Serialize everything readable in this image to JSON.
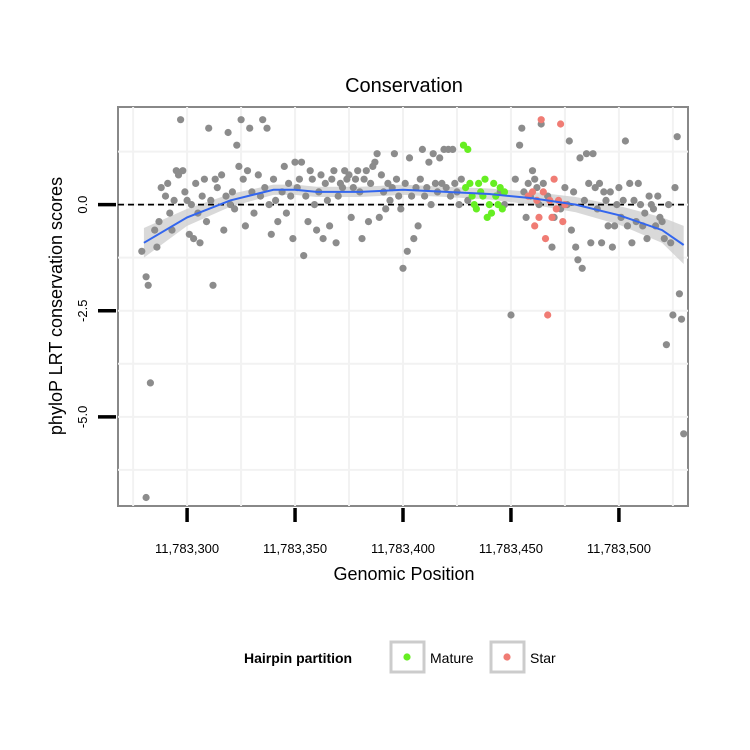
{
  "chart_data": {
    "type": "scatter",
    "title": "Conservation",
    "xlabel": "Genomic Position",
    "ylabel": "phyloP LRT conservation scores",
    "xlim": [
      11783268,
      11783532
    ],
    "ylim": [
      -7.1,
      2.3
    ],
    "x_ticks": [
      {
        "value": 11783300,
        "label": "11,783,300"
      },
      {
        "value": 11783350,
        "label": "11,783,350"
      },
      {
        "value": 11783400,
        "label": "11,783,400"
      },
      {
        "value": 11783450,
        "label": "11,783,450"
      },
      {
        "value": 11783500,
        "label": "11,783,500"
      }
    ],
    "y_ticks": [
      {
        "value": 0.0,
        "label": "0.0"
      },
      {
        "value": -2.5,
        "label": "-2.5"
      },
      {
        "value": -5.0,
        "label": "-5.0"
      }
    ],
    "grid": true,
    "reference_line": {
      "y": 0,
      "style": "dashed"
    },
    "colors": {
      "other": "#8c8c8c",
      "Mature": "#66ee22",
      "Star": "#f07c74",
      "smooth": "#3366ee",
      "ribbon": "#cccccc"
    },
    "legend": {
      "title": "Hairpin partition",
      "position": "bottom",
      "entries": [
        {
          "name": "Mature",
          "color": "#66ee22"
        },
        {
          "name": "Star",
          "color": "#f07c74"
        }
      ]
    },
    "series": [
      {
        "group": "other",
        "points": [
          [
            11783279,
            -1.1
          ],
          [
            11783281,
            -1.7
          ],
          [
            11783282,
            -1.9
          ],
          [
            11783283,
            -4.2
          ],
          [
            11783285,
            -0.6
          ],
          [
            11783286,
            -1.0
          ],
          [
            11783287,
            -0.4
          ],
          [
            11783288,
            0.4
          ],
          [
            11783290,
            0.2
          ],
          [
            11783291,
            0.5
          ],
          [
            11783292,
            -0.2
          ],
          [
            11783293,
            -0.6
          ],
          [
            11783294,
            0.1
          ],
          [
            11783295,
            0.8
          ],
          [
            11783296,
            0.7
          ],
          [
            11783297,
            2.0
          ],
          [
            11783298,
            0.8
          ],
          [
            11783299,
            0.3
          ],
          [
            11783300,
            0.1
          ],
          [
            11783301,
            -0.7
          ],
          [
            11783302,
            0.0
          ],
          [
            11783303,
            -0.8
          ],
          [
            11783304,
            0.5
          ],
          [
            11783305,
            -0.2
          ],
          [
            11783306,
            -0.9
          ],
          [
            11783307,
            0.2
          ],
          [
            11783308,
            0.6
          ],
          [
            11783309,
            -0.4
          ],
          [
            11783310,
            1.8
          ],
          [
            11783311,
            0.1
          ],
          [
            11783312,
            -1.9
          ],
          [
            11783313,
            0.6
          ],
          [
            11783314,
            0.4
          ],
          [
            11783316,
            0.7
          ],
          [
            11783317,
            -0.6
          ],
          [
            11783318,
            0.2
          ],
          [
            11783319,
            1.7
          ],
          [
            11783320,
            0.0
          ],
          [
            11783321,
            0.3
          ],
          [
            11783322,
            -0.1
          ],
          [
            11783323,
            1.4
          ],
          [
            11783324,
            0.9
          ],
          [
            11783325,
            2.0
          ],
          [
            11783326,
            0.6
          ],
          [
            11783327,
            -0.5
          ],
          [
            11783328,
            0.8
          ],
          [
            11783329,
            1.8
          ],
          [
            11783330,
            0.3
          ],
          [
            11783331,
            -0.2
          ],
          [
            11783333,
            0.7
          ],
          [
            11783334,
            0.2
          ],
          [
            11783335,
            2.0
          ],
          [
            11783336,
            0.4
          ],
          [
            11783337,
            1.8
          ],
          [
            11783338,
            0.0
          ],
          [
            11783339,
            -0.7
          ],
          [
            11783340,
            0.6
          ],
          [
            11783341,
            0.1
          ],
          [
            11783342,
            -0.4
          ],
          [
            11783344,
            0.3
          ],
          [
            11783345,
            0.9
          ],
          [
            11783346,
            -0.2
          ],
          [
            11783347,
            0.5
          ],
          [
            11783348,
            0.2
          ],
          [
            11783349,
            -0.8
          ],
          [
            11783350,
            1.0
          ],
          [
            11783351,
            0.4
          ],
          [
            11783352,
            0.6
          ],
          [
            11783353,
            1.0
          ],
          [
            11783354,
            -1.2
          ],
          [
            11783355,
            0.2
          ],
          [
            11783356,
            -0.4
          ],
          [
            11783357,
            0.8
          ],
          [
            11783358,
            0.6
          ],
          [
            11783359,
            0.0
          ],
          [
            11783360,
            -0.6
          ],
          [
            11783361,
            0.3
          ],
          [
            11783362,
            0.7
          ],
          [
            11783363,
            -0.8
          ],
          [
            11783364,
            0.5
          ],
          [
            11783365,
            0.1
          ],
          [
            11783366,
            -0.5
          ],
          [
            11783367,
            0.6
          ],
          [
            11783368,
            0.8
          ],
          [
            11783369,
            -0.9
          ],
          [
            11783370,
            0.2
          ],
          [
            11783371,
            0.5
          ],
          [
            11783372,
            0.4
          ],
          [
            11783373,
            0.8
          ],
          [
            11783374,
            0.6
          ],
          [
            11783375,
            0.7
          ],
          [
            11783376,
            -0.3
          ],
          [
            11783377,
            0.4
          ],
          [
            11783378,
            0.6
          ],
          [
            11783379,
            0.8
          ],
          [
            11783380,
            0.3
          ],
          [
            11783381,
            -0.8
          ],
          [
            11783382,
            0.6
          ],
          [
            11783383,
            0.8
          ],
          [
            11783384,
            -0.4
          ],
          [
            11783385,
            0.5
          ],
          [
            11783386,
            0.9
          ],
          [
            11783387,
            1.0
          ],
          [
            11783388,
            1.2
          ],
          [
            11783389,
            -0.3
          ],
          [
            11783390,
            0.7
          ],
          [
            11783391,
            0.3
          ],
          [
            11783392,
            -0.1
          ],
          [
            11783393,
            0.5
          ],
          [
            11783394,
            0.1
          ],
          [
            11783395,
            0.4
          ],
          [
            11783396,
            1.2
          ],
          [
            11783397,
            0.6
          ],
          [
            11783398,
            0.2
          ],
          [
            11783399,
            -0.1
          ],
          [
            11783400,
            -1.5
          ],
          [
            11783401,
            0.5
          ],
          [
            11783402,
            -1.1
          ],
          [
            11783403,
            1.1
          ],
          [
            11783404,
            0.2
          ],
          [
            11783405,
            -0.8
          ],
          [
            11783406,
            0.4
          ],
          [
            11783407,
            -0.5
          ],
          [
            11783408,
            0.6
          ],
          [
            11783409,
            1.3
          ],
          [
            11783410,
            0.2
          ],
          [
            11783411,
            0.4
          ],
          [
            11783412,
            1.0
          ],
          [
            11783413,
            0.0
          ],
          [
            11783414,
            1.2
          ],
          [
            11783415,
            0.5
          ],
          [
            11783416,
            0.3
          ],
          [
            11783417,
            1.1
          ],
          [
            11783418,
            0.5
          ],
          [
            11783419,
            1.3
          ],
          [
            11783420,
            0.4
          ],
          [
            11783421,
            1.3
          ],
          [
            11783422,
            0.2
          ],
          [
            11783423,
            1.3
          ],
          [
            11783424,
            0.5
          ],
          [
            11783425,
            0.3
          ],
          [
            11783426,
            0.0
          ],
          [
            11783427,
            0.6
          ],
          [
            11783430,
            0.1
          ],
          [
            11783445,
            0.3
          ],
          [
            11783447,
            0.0
          ],
          [
            11783450,
            -2.6
          ],
          [
            11783452,
            0.6
          ],
          [
            11783454,
            1.4
          ],
          [
            11783455,
            1.8
          ],
          [
            11783456,
            0.3
          ],
          [
            11783457,
            -0.3
          ],
          [
            11783458,
            0.5
          ],
          [
            11783459,
            0.2
          ],
          [
            11783460,
            0.8
          ],
          [
            11783461,
            0.6
          ],
          [
            11783462,
            0.4
          ],
          [
            11783463,
            0.0
          ],
          [
            11783464,
            1.9
          ],
          [
            11783465,
            0.5
          ],
          [
            11783467,
            0.2
          ],
          [
            11783469,
            -1.0
          ],
          [
            11783470,
            -0.3
          ],
          [
            11783473,
            -0.1
          ],
          [
            11783475,
            0.4
          ],
          [
            11783476,
            0.0
          ],
          [
            11783477,
            1.5
          ],
          [
            11783478,
            -0.6
          ],
          [
            11783479,
            0.3
          ],
          [
            11783480,
            -1.0
          ],
          [
            11783481,
            -1.3
          ],
          [
            11783482,
            1.1
          ],
          [
            11783483,
            -1.5
          ],
          [
            11783484,
            0.1
          ],
          [
            11783485,
            1.2
          ],
          [
            11783486,
            0.5
          ],
          [
            11783487,
            -0.9
          ],
          [
            11783488,
            1.2
          ],
          [
            11783489,
            0.4
          ],
          [
            11783490,
            -0.1
          ],
          [
            11783491,
            0.5
          ],
          [
            11783492,
            -0.9
          ],
          [
            11783493,
            0.3
          ],
          [
            11783494,
            0.1
          ],
          [
            11783495,
            -0.5
          ],
          [
            11783496,
            0.3
          ],
          [
            11783497,
            -1.0
          ],
          [
            11783498,
            -0.5
          ],
          [
            11783499,
            0.0
          ],
          [
            11783500,
            0.4
          ],
          [
            11783501,
            -0.3
          ],
          [
            11783502,
            0.1
          ],
          [
            11783503,
            1.5
          ],
          [
            11783504,
            -0.5
          ],
          [
            11783505,
            0.5
          ],
          [
            11783506,
            -0.9
          ],
          [
            11783507,
            0.1
          ],
          [
            11783508,
            -0.4
          ],
          [
            11783509,
            0.5
          ],
          [
            11783510,
            0.0
          ],
          [
            11783511,
            -0.5
          ],
          [
            11783512,
            -0.2
          ],
          [
            11783513,
            -0.8
          ],
          [
            11783514,
            0.2
          ],
          [
            11783515,
            0.0
          ],
          [
            11783516,
            -0.1
          ],
          [
            11783517,
            -0.5
          ],
          [
            11783518,
            0.2
          ],
          [
            11783519,
            -0.3
          ],
          [
            11783520,
            -0.4
          ],
          [
            11783521,
            -0.8
          ],
          [
            11783522,
            -3.3
          ],
          [
            11783523,
            0.0
          ],
          [
            11783524,
            -0.9
          ],
          [
            11783525,
            -2.6
          ],
          [
            11783526,
            0.4
          ],
          [
            11783527,
            1.6
          ],
          [
            11783528,
            -2.1
          ],
          [
            11783529,
            -2.7
          ],
          [
            11783530,
            -5.4
          ],
          [
            11783281,
            -6.9
          ]
        ]
      },
      {
        "group": "Mature",
        "points": [
          [
            11783428,
            1.4
          ],
          [
            11783429,
            0.4
          ],
          [
            11783430,
            1.3
          ],
          [
            11783431,
            0.5
          ],
          [
            11783432,
            0.2
          ],
          [
            11783433,
            0.0
          ],
          [
            11783434,
            -0.1
          ],
          [
            11783435,
            0.5
          ],
          [
            11783436,
            0.3
          ],
          [
            11783437,
            0.2
          ],
          [
            11783438,
            0.6
          ],
          [
            11783439,
            -0.3
          ],
          [
            11783440,
            0.0
          ],
          [
            11783441,
            -0.2
          ],
          [
            11783442,
            0.5
          ],
          [
            11783443,
            0.2
          ],
          [
            11783444,
            0.0
          ],
          [
            11783445,
            0.4
          ],
          [
            11783446,
            -0.1
          ],
          [
            11783447,
            0.3
          ]
        ]
      },
      {
        "group": "Star",
        "points": [
          [
            11783458,
            0.2
          ],
          [
            11783460,
            0.3
          ],
          [
            11783461,
            -0.5
          ],
          [
            11783462,
            0.1
          ],
          [
            11783463,
            -0.3
          ],
          [
            11783464,
            2.0
          ],
          [
            11783465,
            0.3
          ],
          [
            11783466,
            -0.8
          ],
          [
            11783467,
            -2.6
          ],
          [
            11783468,
            0.1
          ],
          [
            11783469,
            -0.3
          ],
          [
            11783470,
            0.6
          ],
          [
            11783471,
            -0.1
          ],
          [
            11783472,
            0.1
          ],
          [
            11783473,
            1.9
          ],
          [
            11783474,
            -0.4
          ],
          [
            11783475,
            0.0
          ]
        ]
      }
    ],
    "smooth": {
      "x": [
        11783280,
        11783300,
        11783320,
        11783340,
        11783350,
        11783360,
        11783380,
        11783400,
        11783420,
        11783440,
        11783460,
        11783480,
        11783500,
        11783520,
        11783530
      ],
      "y": [
        -0.9,
        -0.3,
        0.1,
        0.35,
        0.35,
        0.3,
        0.3,
        0.35,
        0.3,
        0.25,
        0.15,
        0.0,
        -0.25,
        -0.6,
        -0.95
      ],
      "se": [
        0.35,
        0.2,
        0.15,
        0.12,
        0.12,
        0.12,
        0.12,
        0.12,
        0.12,
        0.13,
        0.15,
        0.18,
        0.22,
        0.3,
        0.45
      ]
    }
  }
}
